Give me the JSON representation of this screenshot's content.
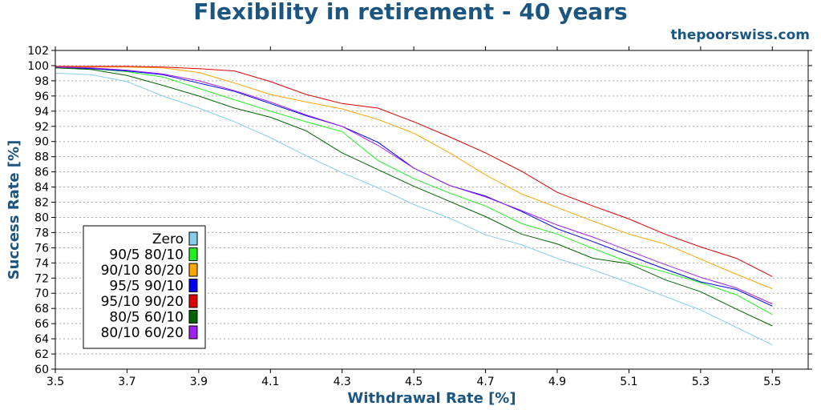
{
  "header": {
    "title": "Flexibility in retirement - 40 years",
    "watermark": "thepoorswiss.com"
  },
  "chart_data": {
    "type": "line",
    "xlabel": "Withdrawal Rate [%]",
    "ylabel": "Success Rate [%]",
    "xlim": [
      3.5,
      5.6
    ],
    "ylim": [
      60,
      102
    ],
    "x_ticks": [
      "3.5",
      "3.7",
      "3.9",
      "4.1",
      "4.3",
      "4.5",
      "4.7",
      "4.9",
      "5.1",
      "5.3",
      "5.5"
    ],
    "y_ticks": [
      "60",
      "62",
      "64",
      "66",
      "68",
      "70",
      "72",
      "74",
      "76",
      "78",
      "80",
      "82",
      "84",
      "86",
      "88",
      "90",
      "92",
      "94",
      "96",
      "98",
      "100",
      "102"
    ],
    "grid": true,
    "legend_position": "bottom-left",
    "x": [
      3.5,
      3.6,
      3.7,
      3.8,
      3.9,
      4.0,
      4.1,
      4.2,
      4.3,
      4.4,
      4.5,
      4.6,
      4.7,
      4.8,
      4.9,
      5.0,
      5.1,
      5.2,
      5.3,
      5.4,
      5.5
    ],
    "series": [
      {
        "name": "Zero",
        "color": "#87ceeb",
        "values": [
          99.0,
          98.8,
          97.9,
          96.0,
          94.4,
          92.6,
          90.5,
          88.1,
          85.9,
          83.9,
          81.7,
          79.9,
          77.7,
          76.4,
          74.6,
          73.1,
          71.4,
          69.6,
          67.8,
          65.5,
          63.2
        ]
      },
      {
        "name": "90/5 80/10",
        "color": "#22ee22",
        "values": [
          99.7,
          99.6,
          99.2,
          98.5,
          97.0,
          95.5,
          94.0,
          92.6,
          91.3,
          87.5,
          85.1,
          83.2,
          81.5,
          79.2,
          77.8,
          75.9,
          74.1,
          72.8,
          71.4,
          69.8,
          67.2
        ]
      },
      {
        "name": "90/10 80/20",
        "color": "#ffa500",
        "values": [
          99.8,
          99.8,
          99.8,
          99.7,
          99.1,
          97.7,
          96.2,
          95.2,
          94.3,
          92.9,
          91.1,
          88.5,
          85.6,
          83.1,
          81.3,
          79.5,
          77.8,
          76.5,
          74.5,
          72.5,
          70.6
        ]
      },
      {
        "name": "95/5 90/10",
        "color": "#0000ee",
        "values": [
          99.8,
          99.6,
          99.3,
          98.8,
          97.7,
          96.6,
          95.0,
          93.4,
          92.0,
          89.9,
          86.5,
          84.2,
          82.8,
          80.8,
          78.5,
          76.8,
          75.0,
          73.2,
          71.5,
          70.5,
          68.3
        ]
      },
      {
        "name": "95/10 90/20",
        "color": "#dd0000",
        "values": [
          99.9,
          99.9,
          99.9,
          99.8,
          99.6,
          99.3,
          97.9,
          96.2,
          95.0,
          94.4,
          92.6,
          90.6,
          88.5,
          86.1,
          83.3,
          81.5,
          79.8,
          77.8,
          76.1,
          74.6,
          72.2
        ]
      },
      {
        "name": "80/5 60/10",
        "color": "#006400",
        "values": [
          99.7,
          99.5,
          98.7,
          97.4,
          96.0,
          94.4,
          93.2,
          91.4,
          88.5,
          86.3,
          84.1,
          82.1,
          80.1,
          77.8,
          76.5,
          74.6,
          73.9,
          71.8,
          70.2,
          67.9,
          65.7
        ]
      },
      {
        "name": "80/10 60/20",
        "color": "#a020f0",
        "values": [
          99.8,
          99.7,
          99.4,
          98.9,
          98.0,
          96.7,
          95.2,
          93.5,
          92.0,
          89.5,
          86.5,
          84.2,
          82.7,
          80.9,
          79.0,
          77.4,
          75.6,
          73.8,
          72.1,
          70.7,
          68.6
        ]
      }
    ]
  }
}
